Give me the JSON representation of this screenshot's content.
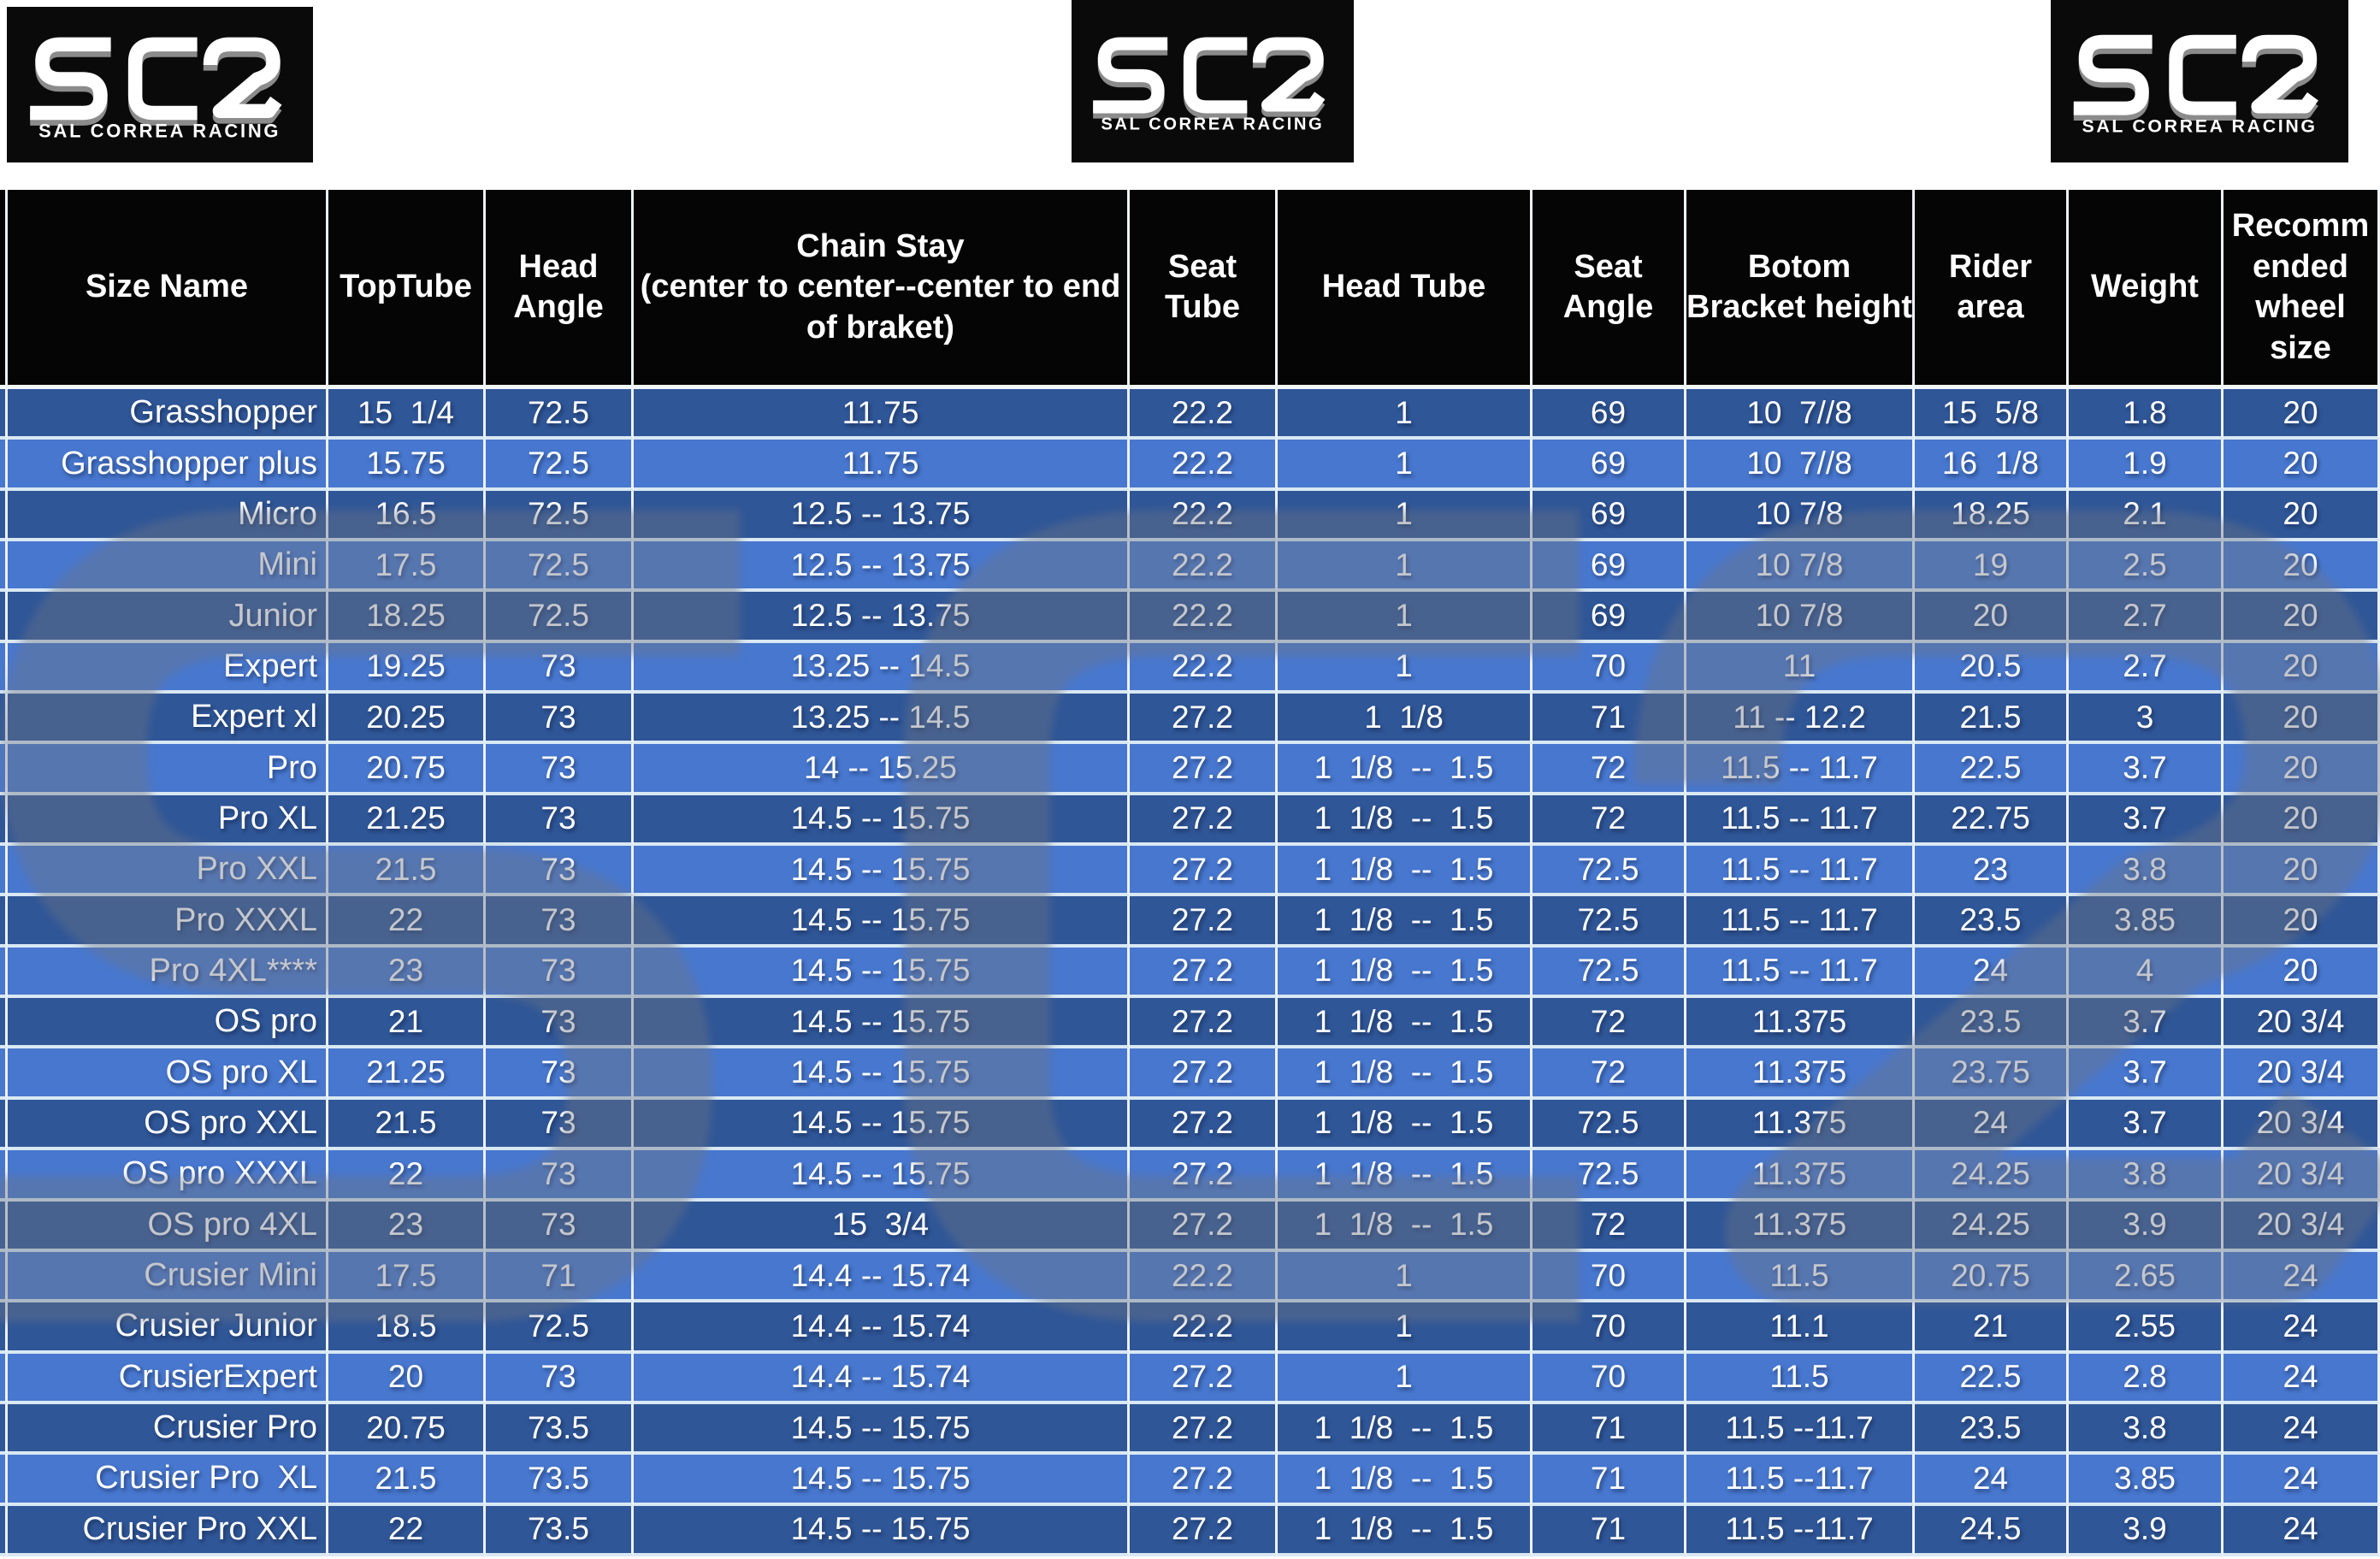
{
  "brand": {
    "name": "SCR",
    "subtext": "SAL CORREA RACING"
  },
  "colors": {
    "row_dark": "#2F5697",
    "row_light": "#4777CE",
    "header_bg": "#050505",
    "grid_line": "#EDF2F8",
    "row_line": "#D9E8F3",
    "text": "#FFFFFF",
    "watermark": "#6E7584",
    "logo_bg": "#0A0A0A"
  },
  "table": {
    "columns": [
      "Size Name",
      "TopTube",
      "Head Angle",
      "Chain Stay\n(center to center--center to end of braket)",
      "Seat Tube",
      "Head Tube",
      "Seat Angle",
      "Botom Bracket height",
      "Rider area",
      "Weight",
      "Recomm ended wheel size"
    ],
    "rows": [
      {
        "name": "Grasshopper",
        "values": [
          "15  1/4",
          "72.5",
          "11.75",
          "22.2",
          "1",
          "69",
          "10  7//8",
          "15  5/8",
          "1.8",
          "20"
        ]
      },
      {
        "name": "Grasshopper plus",
        "values": [
          "15.75",
          "72.5",
          "11.75",
          "22.2",
          "1",
          "69",
          "10  7//8",
          "16  1/8",
          "1.9",
          "20"
        ]
      },
      {
        "name": "Micro",
        "values": [
          "16.5",
          "72.5",
          "12.5 -- 13.75",
          "22.2",
          "1",
          "69",
          "10 7/8",
          "18.25",
          "2.1",
          "20"
        ]
      },
      {
        "name": "Mini",
        "values": [
          "17.5",
          "72.5",
          "12.5 -- 13.75",
          "22.2",
          "1",
          "69",
          "10 7/8",
          "19",
          "2.5",
          "20"
        ]
      },
      {
        "name": "Junior",
        "values": [
          "18.25",
          "72.5",
          "12.5 -- 13.75",
          "22.2",
          "1",
          "69",
          "10 7/8",
          "20",
          "2.7",
          "20"
        ]
      },
      {
        "name": "Expert",
        "values": [
          "19.25",
          "73",
          "13.25 -- 14.5",
          "22.2",
          "1",
          "70",
          "11",
          "20.5",
          "2.7",
          "20"
        ]
      },
      {
        "name": "Expert xl",
        "values": [
          "20.25",
          "73",
          "13.25 -- 14.5",
          "27.2",
          "1  1/8",
          "71",
          "11 -- 12.2",
          "21.5",
          "3",
          "20"
        ]
      },
      {
        "name": "Pro",
        "values": [
          "20.75",
          "73",
          "14 -- 15.25",
          "27.2",
          "1  1/8  --  1.5",
          "72",
          "11.5 -- 11.7",
          "22.5",
          "3.7",
          "20"
        ]
      },
      {
        "name": "Pro XL",
        "values": [
          "21.25",
          "73",
          "14.5 -- 15.75",
          "27.2",
          "1  1/8  --  1.5",
          "72",
          "11.5 -- 11.7",
          "22.75",
          "3.7",
          "20"
        ]
      },
      {
        "name": "Pro XXL",
        "values": [
          "21.5",
          "73",
          "14.5 -- 15.75",
          "27.2",
          "1  1/8  --  1.5",
          "72.5",
          "11.5 -- 11.7",
          "23",
          "3.8",
          "20"
        ]
      },
      {
        "name": "Pro XXXL",
        "values": [
          "22",
          "73",
          "14.5 -- 15.75",
          "27.2",
          "1  1/8  --  1.5",
          "72.5",
          "11.5 -- 11.7",
          "23.5",
          "3.85",
          "20"
        ]
      },
      {
        "name": "Pro 4XL****",
        "values": [
          "23",
          "73",
          "14.5 -- 15.75",
          "27.2",
          "1  1/8  --  1.5",
          "72.5",
          "11.5 -- 11.7",
          "24",
          "4",
          "20"
        ]
      },
      {
        "name": "OS pro",
        "values": [
          "21",
          "73",
          "14.5 -- 15.75",
          "27.2",
          "1  1/8  --  1.5",
          "72",
          "11.375",
          "23.5",
          "3.7",
          "20 3/4"
        ]
      },
      {
        "name": "OS pro XL",
        "values": [
          "21.25",
          "73",
          "14.5 -- 15.75",
          "27.2",
          "1  1/8  --  1.5",
          "72",
          "11.375",
          "23.75",
          "3.7",
          "20 3/4"
        ]
      },
      {
        "name": "OS pro XXL",
        "values": [
          "21.5",
          "73",
          "14.5 -- 15.75",
          "27.2",
          "1  1/8  --  1.5",
          "72.5",
          "11.375",
          "24",
          "3.7",
          "20 3/4"
        ]
      },
      {
        "name": "OS pro XXXL",
        "values": [
          "22",
          "73",
          "14.5 -- 15.75",
          "27.2",
          "1  1/8  --  1.5",
          "72.5",
          "11.375",
          "24.25",
          "3.8",
          "20 3/4"
        ]
      },
      {
        "name": "OS pro 4XL",
        "values": [
          "23",
          "73",
          "15  3/4",
          "27.2",
          "1  1/8  --  1.5",
          "72",
          "11.375",
          "24.25",
          "3.9",
          "20 3/4"
        ]
      },
      {
        "name": "Crusier Mini",
        "values": [
          "17.5",
          "71",
          "14.4 -- 15.74",
          "22.2",
          "1",
          "70",
          "11.5",
          "20.75",
          "2.65",
          "24"
        ]
      },
      {
        "name": "Crusier Junior",
        "values": [
          "18.5",
          "72.5",
          "14.4 -- 15.74",
          "22.2",
          "1",
          "70",
          "11.1",
          "21",
          "2.55",
          "24"
        ]
      },
      {
        "name": "CrusierExpert",
        "values": [
          "20",
          "73",
          "14.4 -- 15.74",
          "27.2",
          "1",
          "70",
          "11.5",
          "22.5",
          "2.8",
          "24"
        ]
      },
      {
        "name": "Crusier Pro",
        "values": [
          "20.75",
          "73.5",
          "14.5 -- 15.75",
          "27.2",
          "1  1/8  --  1.5",
          "71",
          "11.5 --11.7",
          "23.5",
          "3.8",
          "24"
        ]
      },
      {
        "name": "Crusier Pro  XL",
        "values": [
          "21.5",
          "73.5",
          "14.5 -- 15.75",
          "27.2",
          "1  1/8  --  1.5",
          "71",
          "11.5 --11.7",
          "24",
          "3.85",
          "24"
        ]
      },
      {
        "name": "Crusier Pro XXL",
        "values": [
          "22",
          "73.5",
          "14.5 -- 15.75",
          "27.2",
          "1  1/8  --  1.5",
          "71",
          "11.5 --11.7",
          "24.5",
          "3.9",
          "24"
        ]
      }
    ]
  }
}
